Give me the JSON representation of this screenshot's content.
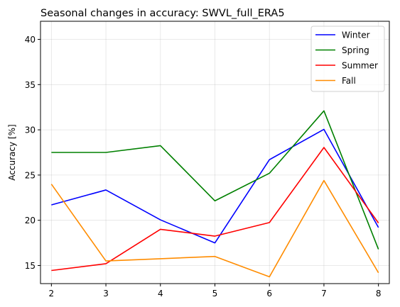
{
  "chart_data": {
    "type": "line",
    "title": "Seasonal changes in accuracy: SWVL_full_ERA5",
    "xlabel": "",
    "ylabel": "Accuracy [%]",
    "x": [
      2,
      3,
      4,
      5,
      6,
      7,
      8
    ],
    "xlim": [
      1.8,
      8.2
    ],
    "ylim": [
      13,
      42
    ],
    "xticks": [
      2,
      3,
      4,
      5,
      6,
      7,
      8
    ],
    "yticks": [
      15,
      20,
      25,
      30,
      35,
      40
    ],
    "grid": true,
    "legend_position": "top-right",
    "series": [
      {
        "name": "Winter",
        "color": "#0000ff",
        "values": [
          21.7,
          23.35,
          20.05,
          17.5,
          26.7,
          30.05,
          19.2
        ]
      },
      {
        "name": "Spring",
        "color": "#008000",
        "values": [
          27.5,
          27.5,
          28.25,
          22.15,
          25.2,
          32.1,
          16.8
        ]
      },
      {
        "name": "Summer",
        "color": "#ff0000",
        "values": [
          14.45,
          15.2,
          19.0,
          18.25,
          19.75,
          28.05,
          19.7
        ]
      },
      {
        "name": "Fall",
        "color": "#ff8c00",
        "values": [
          24.0,
          15.5,
          15.75,
          16.0,
          13.75,
          24.4,
          14.2
        ]
      }
    ]
  }
}
